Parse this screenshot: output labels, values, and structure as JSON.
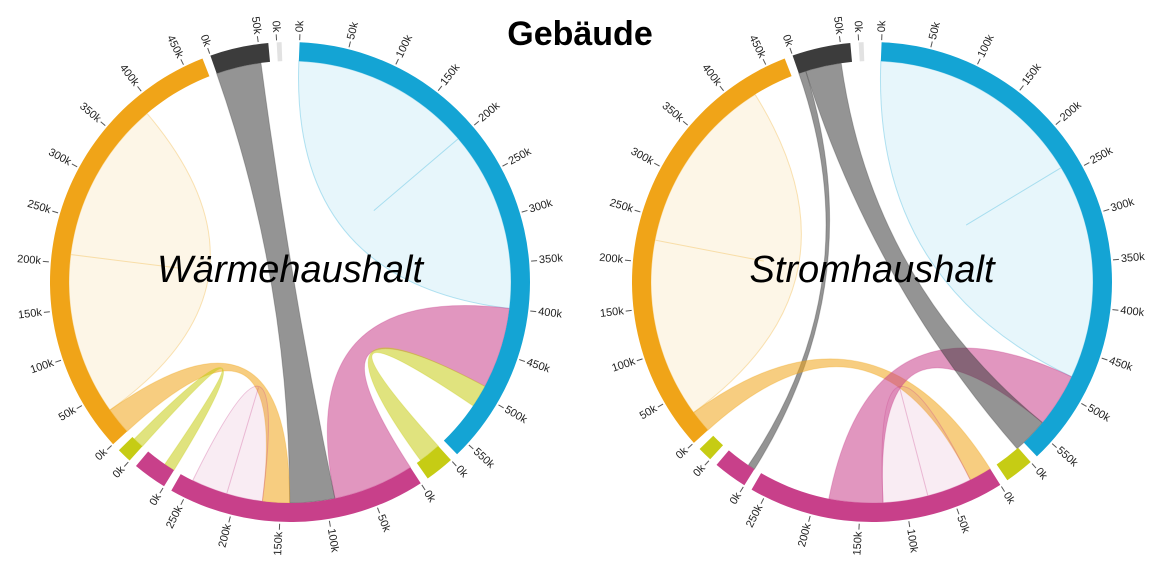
{
  "title": "Gebäude",
  "chart_data": [
    {
      "type": "chord",
      "label": "Wärmehaushalt",
      "groups": [
        {
          "color": "#14a4d4",
          "value": 565,
          "ticks": [
            {
              "value": 0,
              "label": "0k"
            },
            {
              "value": 50,
              "label": "50k"
            },
            {
              "value": 100,
              "label": "100k"
            },
            {
              "value": 150,
              "label": "150k"
            },
            {
              "value": 200,
              "label": "200k"
            },
            {
              "value": 250,
              "label": "250k"
            },
            {
              "value": 300,
              "label": "300k"
            },
            {
              "value": 350,
              "label": "350k"
            },
            {
              "value": 400,
              "label": "400k"
            },
            {
              "value": 450,
              "label": "450k"
            },
            {
              "value": 500,
              "label": "500k"
            },
            {
              "value": 550,
              "label": "550k"
            }
          ]
        },
        {
          "color": "#c6cc14",
          "value": 30,
          "ticks": [
            {
              "value": 0,
              "label": "0k"
            }
          ]
        },
        {
          "color": "#c8408a",
          "value": 265,
          "ticks": [
            {
              "value": 0,
              "label": "0k"
            },
            {
              "value": 50,
              "label": "50k"
            },
            {
              "value": 100,
              "label": "100k"
            },
            {
              "value": 150,
              "label": "150k"
            },
            {
              "value": 200,
              "label": "200k"
            },
            {
              "value": 250,
              "label": "250k"
            }
          ]
        },
        {
          "color": "#c8408a",
          "value": 35,
          "ticks": [
            {
              "value": 0,
              "label": "0k"
            }
          ]
        },
        {
          "color": "#c6cc14",
          "value": 15,
          "ticks": [
            {
              "value": 0,
              "label": "0k"
            }
          ]
        },
        {
          "color": "#f0a418",
          "value": 470,
          "ticks": [
            {
              "value": 0,
              "label": "0k"
            },
            {
              "value": 50,
              "label": "50k"
            },
            {
              "value": 100,
              "label": "100k"
            },
            {
              "value": 150,
              "label": "150k"
            },
            {
              "value": 200,
              "label": "200k"
            },
            {
              "value": 250,
              "label": "250k"
            },
            {
              "value": 300,
              "label": "300k"
            },
            {
              "value": 350,
              "label": "350k"
            },
            {
              "value": 400,
              "label": "400k"
            },
            {
              "value": 450,
              "label": "450k"
            }
          ]
        },
        {
          "color": "#3c3c3c",
          "value": 60,
          "ticks": [
            {
              "value": 0,
              "label": "0k"
            },
            {
              "value": 50,
              "label": "50k"
            }
          ]
        },
        {
          "color": "#e2e2e2",
          "value": 5,
          "ticks": [
            {
              "value": 0,
              "label": "0k"
            }
          ]
        }
      ],
      "chords": [
        {
          "source": 0,
          "target": 0,
          "value": 200
        },
        {
          "source": 2,
          "target": 0,
          "value": 90
        },
        {
          "source": 6,
          "target": 2,
          "value": 50
        },
        {
          "source": 5,
          "target": 2,
          "value": 30
        },
        {
          "source": 5,
          "target": 5,
          "value": 180
        },
        {
          "source": 2,
          "target": 2,
          "value": 40
        },
        {
          "source": 4,
          "target": 3,
          "value": 12
        },
        {
          "source": 1,
          "target": 0,
          "value": 25
        }
      ]
    },
    {
      "type": "chord",
      "label": "Stromhaushalt",
      "groups": [
        {
          "color": "#14a4d4",
          "value": 570,
          "ticks": [
            {
              "value": 0,
              "label": "0k"
            },
            {
              "value": 50,
              "label": "50k"
            },
            {
              "value": 100,
              "label": "100k"
            },
            {
              "value": 150,
              "label": "150k"
            },
            {
              "value": 200,
              "label": "200k"
            },
            {
              "value": 250,
              "label": "250k"
            },
            {
              "value": 300,
              "label": "300k"
            },
            {
              "value": 350,
              "label": "350k"
            },
            {
              "value": 400,
              "label": "400k"
            },
            {
              "value": 450,
              "label": "450k"
            },
            {
              "value": 500,
              "label": "500k"
            },
            {
              "value": 550,
              "label": "550k"
            }
          ]
        },
        {
          "color": "#c6cc14",
          "value": 30,
          "ticks": [
            {
              "value": 0,
              "label": "0k"
            }
          ]
        },
        {
          "color": "#c8408a",
          "value": 265,
          "ticks": [
            {
              "value": 0,
              "label": "0k"
            },
            {
              "value": 50,
              "label": "50k"
            },
            {
              "value": 100,
              "label": "100k"
            },
            {
              "value": 150,
              "label": "150k"
            },
            {
              "value": 200,
              "label": "200k"
            },
            {
              "value": 250,
              "label": "250k"
            }
          ]
        },
        {
          "color": "#c8408a",
          "value": 35,
          "ticks": [
            {
              "value": 0,
              "label": "0k"
            }
          ]
        },
        {
          "color": "#c6cc14",
          "value": 15,
          "ticks": [
            {
              "value": 0,
              "label": "0k"
            }
          ]
        },
        {
          "color": "#f0a418",
          "value": 470,
          "ticks": [
            {
              "value": 0,
              "label": "0k"
            },
            {
              "value": 50,
              "label": "50k"
            },
            {
              "value": 100,
              "label": "100k"
            },
            {
              "value": 150,
              "label": "150k"
            },
            {
              "value": 200,
              "label": "200k"
            },
            {
              "value": 250,
              "label": "250k"
            },
            {
              "value": 300,
              "label": "300k"
            },
            {
              "value": 350,
              "label": "350k"
            },
            {
              "value": 400,
              "label": "400k"
            },
            {
              "value": 450,
              "label": "450k"
            }
          ]
        },
        {
          "color": "#3c3c3c",
          "value": 60,
          "ticks": [
            {
              "value": 0,
              "label": "0k"
            },
            {
              "value": 50,
              "label": "50k"
            }
          ]
        },
        {
          "color": "#e2e2e2",
          "value": 5,
          "ticks": [
            {
              "value": 0,
              "label": "0k"
            }
          ]
        }
      ],
      "chords": [
        {
          "source": 0,
          "target": 0,
          "value": 240
        },
        {
          "source": 6,
          "target": 3,
          "value": 8
        },
        {
          "source": 5,
          "target": 2,
          "value": 25
        },
        {
          "source": 2,
          "target": 2,
          "value": 50
        },
        {
          "source": 5,
          "target": 5,
          "value": 200
        },
        {
          "source": 2,
          "target": 0,
          "value": 60
        },
        {
          "source": 6,
          "target": 0,
          "value": 40
        }
      ]
    }
  ]
}
